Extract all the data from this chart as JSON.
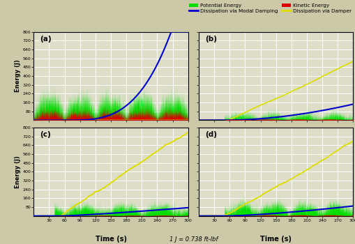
{
  "fig_width": 5.09,
  "fig_height": 3.5,
  "dpi": 100,
  "bg_color": "#ccc9a8",
  "plot_bg_color": "#ddddc8",
  "grid_color": "white",
  "xlim": [
    0,
    300
  ],
  "ylim": [
    0,
    800
  ],
  "yticks": [
    80,
    160,
    240,
    320,
    400,
    480,
    560,
    640,
    720,
    800
  ],
  "xticks": [
    30,
    60,
    90,
    120,
    150,
    180,
    210,
    240,
    270,
    300
  ],
  "xlabel": "Time (s)",
  "ylabel": "Energy (J)",
  "subtitle": "1 J = 0.738 ft-lbf",
  "subplot_labels": [
    "(a)",
    "(b)",
    "(c)",
    "(d)"
  ],
  "colors": {
    "potential": "#00dd00",
    "kinetic": "#dd0000",
    "modal_damping": "#0000cc",
    "damper": "#dddd00"
  },
  "legend_labels": [
    "Potential Energy",
    "Kinetic Energy",
    "Dissipation via Modal Damping",
    "Dissipation via Damper"
  ]
}
